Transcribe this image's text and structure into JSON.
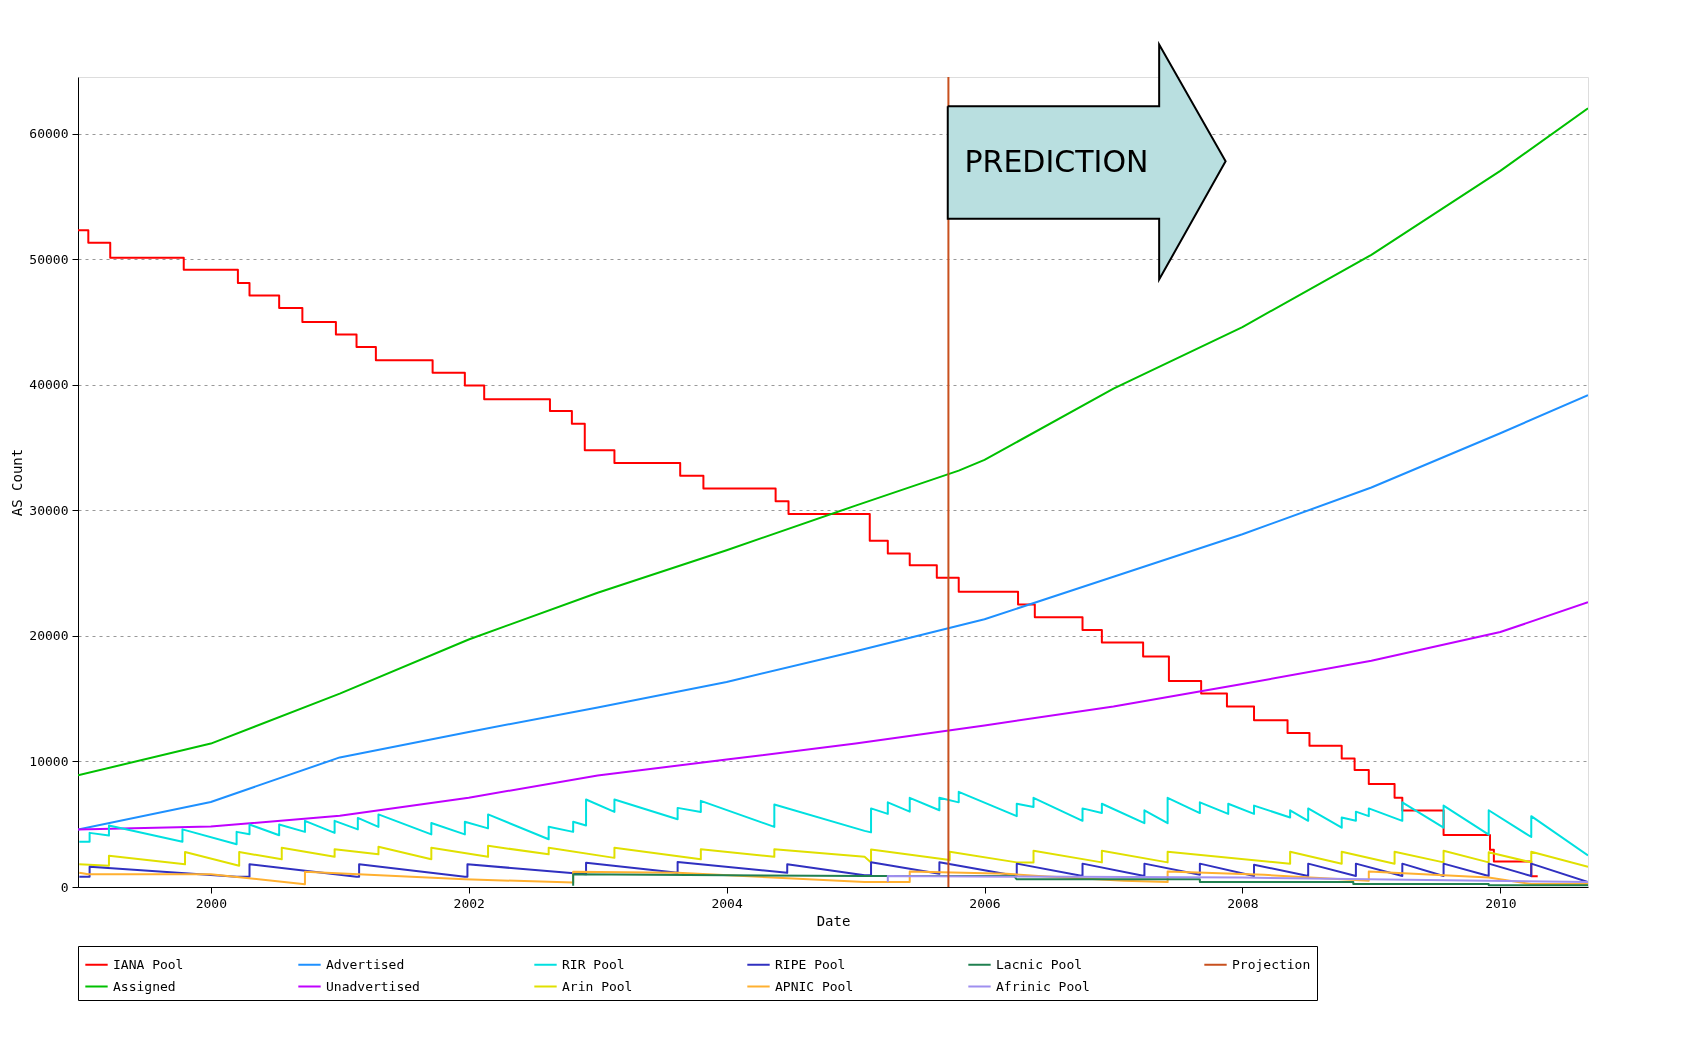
{
  "chart_data": {
    "type": "line",
    "xlabel": "Date",
    "ylabel": "AS Count",
    "xlim": [
      1998.97,
      2010.68
    ],
    "xticks": [
      2000,
      2002,
      2004,
      2006,
      2008,
      2010
    ],
    "ylim": [
      0,
      64500
    ],
    "yticks": [
      0,
      10000,
      20000,
      30000,
      40000,
      50000,
      60000
    ],
    "grid": "y",
    "legend": "bottom",
    "annotations": [
      "PREDICTION"
    ],
    "ref_lines": [
      {
        "axis": "x",
        "value": 2005.72,
        "label": "Projection",
        "color": "#c8501e"
      }
    ],
    "series": [
      {
        "name": "IANA Pool",
        "type": "step",
        "color": "#ff0000",
        "x": [
          1998.97,
          1999.05,
          1999.22,
          1999.79,
          2000.21,
          2000.3,
          2000.53,
          2000.71,
          2000.97,
          2001.13,
          2001.28,
          2001.72,
          2001.97,
          2002.12,
          2002.63,
          2002.8,
          2002.9,
          2003.13,
          2003.64,
          2003.82,
          2004.38,
          2004.48,
          2005.11,
          2005.25,
          2005.42,
          2005.63,
          2005.8,
          2006.26,
          2006.39,
          2006.76,
          2006.91,
          2007.23,
          2007.43,
          2007.68,
          2007.88,
          2008.09,
          2008.35,
          2008.52,
          2008.77,
          2008.87,
          2008.98,
          2009.18,
          2009.24,
          2009.56,
          2009.92,
          2009.95,
          2010.24,
          2010.29
        ],
        "values": [
          52300,
          51300,
          50100,
          49150,
          48100,
          47100,
          46100,
          45000,
          44000,
          43000,
          41950,
          40950,
          39930,
          38830,
          37900,
          36890,
          34770,
          33760,
          32740,
          31730,
          30710,
          29700,
          27580,
          26560,
          25630,
          24620,
          23520,
          22500,
          21490,
          20470,
          19460,
          18360,
          16410,
          15400,
          14380,
          13280,
          12270,
          11250,
          10240,
          9310,
          8210,
          7110,
          6090,
          4150,
          2960,
          2030,
          850,
          850
        ]
      },
      {
        "name": "Assigned",
        "color": "#00c000",
        "x": [
          1998.97,
          2000,
          2001,
          2002,
          2003,
          2004,
          2005,
          2005.8,
          2006,
          2007,
          2008,
          2009,
          2010,
          2010.68
        ],
        "values": [
          8900,
          11420,
          15400,
          19710,
          23430,
          26820,
          30370,
          33160,
          34010,
          39680,
          44590,
          50340,
          57020,
          62010
        ]
      },
      {
        "name": "Advertised",
        "color": "#1e90ff",
        "x": [
          1998.97,
          2000,
          2001,
          2002,
          2003,
          2004,
          2005,
          2006,
          2007,
          2008,
          2009,
          2010,
          2010.68
        ],
        "values": [
          4570,
          6770,
          10320,
          12350,
          14300,
          16330,
          18780,
          21320,
          24700,
          28090,
          31810,
          36130,
          39170
        ]
      },
      {
        "name": "Unadvertised",
        "color": "#c000ff",
        "x": [
          1998.97,
          2000,
          2001,
          2002,
          2003,
          2004,
          2005,
          2006,
          2007,
          2008,
          2009,
          2010,
          2010.68
        ],
        "values": [
          4570,
          4820,
          5670,
          7110,
          8880,
          10150,
          11420,
          12860,
          14380,
          16160,
          18020,
          20300,
          22670
        ]
      },
      {
        "name": "RIR Pool",
        "color": "#00e0e0",
        "x": [
          1998.98,
          1999.06,
          1999.06,
          1999.21,
          1999.21,
          1999.78,
          1999.78,
          2000.2,
          2000.2,
          2000.3,
          2000.3,
          2000.53,
          2000.53,
          2000.73,
          2000.73,
          2000.96,
          2000.96,
          2001.14,
          2001.14,
          2001.3,
          2001.3,
          2001.71,
          2001.71,
          2001.97,
          2001.97,
          2002.15,
          2002.15,
          2002.62,
          2002.62,
          2002.81,
          2002.81,
          2002.91,
          2002.91,
          2003.13,
          2003.13,
          2003.62,
          2003.62,
          2003.8,
          2003.8,
          2004.37,
          2004.37,
          2005.07,
          2005.12,
          2005.12,
          2005.25,
          2005.25,
          2005.42,
          2005.42,
          2005.65,
          2005.65,
          2005.8,
          2005.8,
          2006.25,
          2006.25,
          2006.38,
          2006.38,
          2006.76,
          2006.76,
          2006.91,
          2006.91,
          2007.24,
          2007.24,
          2007.42,
          2007.42,
          2007.67,
          2007.67,
          2007.89,
          2007.89,
          2008.09,
          2008.09,
          2008.37,
          2008.37,
          2008.51,
          2008.51,
          2008.77,
          2008.77,
          2008.88,
          2008.88,
          2008.98,
          2008.98,
          2009.24,
          2009.24,
          2009.56,
          2009.56,
          2009.91,
          2009.91,
          2010.24,
          2010.24,
          2010.68
        ],
        "values": [
          3600,
          3600,
          4310,
          4100,
          4900,
          3600,
          4590,
          3400,
          4390,
          4200,
          4980,
          4120,
          4980,
          4390,
          5270,
          4310,
          5270,
          4590,
          5500,
          4790,
          5780,
          4190,
          5100,
          4190,
          5190,
          4670,
          5780,
          3800,
          4790,
          4390,
          5190,
          4900,
          6970,
          5980,
          6970,
          5390,
          6300,
          5980,
          6860,
          4790,
          6570,
          4470,
          4350,
          6260,
          5820,
          6740,
          6000,
          7100,
          6110,
          7100,
          6740,
          7580,
          5640,
          6630,
          6370,
          7100,
          5270,
          6260,
          5890,
          6630,
          5080,
          6110,
          5080,
          7100,
          5890,
          6740,
          5820,
          6630,
          5820,
          6480,
          5530,
          6110,
          5270,
          6260,
          4720,
          5530,
          5270,
          6000,
          5640,
          6260,
          5270,
          6740,
          4720,
          6480,
          4170,
          6110,
          3980,
          5640,
          2510
        ]
      },
      {
        "name": "Arin Pool",
        "color": "#e0e000",
        "x": [
          1998.98,
          1999.21,
          1999.21,
          1999.8,
          1999.8,
          2000.22,
          2000.22,
          2000.55,
          2000.55,
          2000.96,
          2000.96,
          2001.3,
          2001.3,
          2001.71,
          2001.71,
          2002.15,
          2002.15,
          2002.62,
          2002.62,
          2003.13,
          2003.13,
          2003.8,
          2003.8,
          2004.37,
          2004.37,
          2005.07,
          2005.12,
          2005.12,
          2005.73,
          2005.73,
          2006.25,
          2006.38,
          2006.38,
          2006.91,
          2006.91,
          2007.42,
          2007.42,
          2008.37,
          2008.37,
          2008.77,
          2008.77,
          2009.18,
          2009.18,
          2009.56,
          2009.56,
          2009.91,
          2009.91,
          2010.24,
          2010.24,
          2010.68
        ],
        "values": [
          1810,
          1700,
          2490,
          1810,
          2780,
          1690,
          2780,
          2210,
          3130,
          2400,
          3000,
          2600,
          3200,
          2210,
          3130,
          2400,
          3280,
          2600,
          3130,
          2320,
          3130,
          2210,
          3000,
          2400,
          3000,
          2400,
          1960,
          2990,
          2150,
          2810,
          1960,
          1960,
          2880,
          1960,
          2880,
          1960,
          2810,
          1850,
          2810,
          1850,
          2810,
          1850,
          2810,
          1960,
          2880,
          1960,
          2770,
          1960,
          2810,
          1600
        ]
      },
      {
        "name": "RIPE Pool",
        "color": "#3030c0",
        "x": [
          1998.98,
          1999.06,
          1999.06,
          2000.2,
          2000.3,
          2000.3,
          2001.13,
          2001.15,
          2001.15,
          2001.97,
          2001.99,
          2001.99,
          2002.91,
          2002.91,
          2003.62,
          2003.62,
          2004.47,
          2004.47,
          2005.07,
          2005.12,
          2005.12,
          2005.65,
          2005.65,
          2006.25,
          2006.25,
          2006.76,
          2006.76,
          2007.24,
          2007.24,
          2007.67,
          2007.67,
          2008.09,
          2008.09,
          2008.51,
          2008.51,
          2008.88,
          2008.88,
          2009.24,
          2009.24,
          2009.56,
          2009.56,
          2009.91,
          2009.91,
          2010.24,
          2010.24,
          2010.68
        ],
        "values": [
          810,
          810,
          1610,
          810,
          810,
          1810,
          810,
          810,
          1810,
          810,
          810,
          1810,
          1010,
          1930,
          1130,
          2000,
          1130,
          1810,
          940,
          940,
          1970,
          1050,
          1970,
          870,
          1860,
          870,
          1860,
          870,
          1860,
          980,
          1860,
          870,
          1780,
          870,
          1860,
          870,
          1860,
          870,
          1860,
          870,
          1860,
          870,
          1860,
          870,
          1860,
          390
        ]
      },
      {
        "name": "APNIC Pool",
        "color": "#ffb030",
        "x": [
          1998.98,
          1999.05,
          2000.0,
          2000.73,
          2000.73,
          2001.97,
          2002.81,
          2002.81,
          2003.62,
          2005.07,
          2005.42,
          2005.42,
          2006.17,
          2006.42,
          2007.08,
          2007.42,
          2007.42,
          2008.17,
          2008.98,
          2008.98,
          2009.91,
          2010.24,
          2010.68
        ],
        "values": [
          1130,
          1010,
          1010,
          220,
          1210,
          620,
          350,
          1210,
          1130,
          390,
          390,
          1230,
          1050,
          870,
          500,
          390,
          1230,
          970,
          500,
          1230,
          750,
          240,
          240
        ]
      },
      {
        "name": "Lacnic Pool",
        "color": "#208050",
        "x": [
          2002.81,
          2002.81,
          2005.07,
          2006.23,
          2006.25,
          2007.67,
          2007.67,
          2008.86,
          2008.86,
          2009.91,
          2009.91,
          2010.68
        ],
        "values": [
          100,
          1010,
          870,
          870,
          610,
          610,
          390,
          390,
          240,
          240,
          130,
          130
        ]
      },
      {
        "name": "Afrinic Pool",
        "color": "#9f8fef",
        "x": [
          2005.25,
          2005.25,
          2008.0,
          2010.68
        ],
        "values": [
          390,
          870,
          750,
          390
        ]
      }
    ]
  }
}
